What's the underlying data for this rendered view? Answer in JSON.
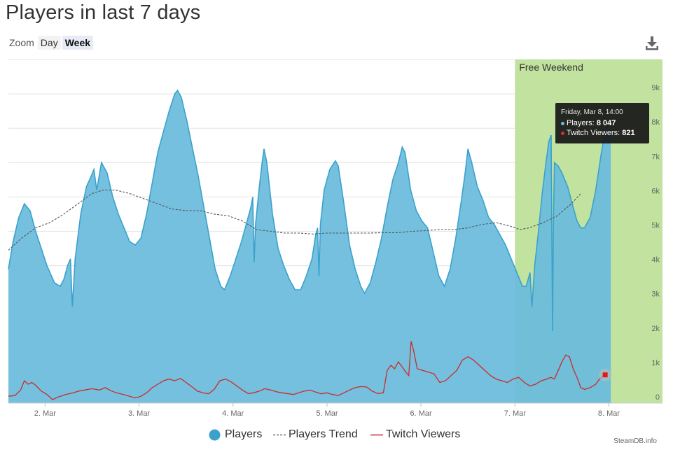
{
  "page": {
    "title": "Players in last 7 days",
    "credit": "SteamDB.info"
  },
  "zoom": {
    "label": "Zoom",
    "buttons": [
      "Day",
      "Week"
    ],
    "active": "Week"
  },
  "export": {
    "icon": "download-icon"
  },
  "tooltip": {
    "date": "Friday, Mar 8, 14:00",
    "players_label": "Players:",
    "players_value": "8 047",
    "twitch_label": "Twitch Viewers:",
    "twitch_value": "821"
  },
  "colors": {
    "players_fill": "#69bbdc",
    "players_line": "#3aa2cc",
    "trend": "#555555",
    "twitch": "#cc2b2b",
    "band": "#bfe19a",
    "grid": "#e3e3e3"
  },
  "chart_data": {
    "type": "area",
    "title": "Players in last 7 days",
    "x_ticks": [
      "2. Mar",
      "3. Mar",
      "4. Mar",
      "5. Mar",
      "6. Mar",
      "7. Mar",
      "8. Mar"
    ],
    "y_ticks": [
      "0",
      "1k",
      "2k",
      "3k",
      "4k",
      "5k",
      "6k",
      "7k",
      "8k",
      "9k"
    ],
    "ylim": [
      0,
      10000
    ],
    "xlim_days": [
      1.61,
      8.57
    ],
    "grid": true,
    "legend_position": "bottom-center",
    "band": {
      "label": "Free Weekend",
      "from_day": 7.0,
      "to_day": 8.57
    },
    "series": [
      {
        "name": "Players",
        "style": "area",
        "points": [
          [
            1.61,
            3900
          ],
          [
            1.66,
            4700
          ],
          [
            1.72,
            5400
          ],
          [
            1.78,
            5800
          ],
          [
            1.84,
            5600
          ],
          [
            1.9,
            5000
          ],
          [
            1.96,
            4500
          ],
          [
            2.02,
            4000
          ],
          [
            2.1,
            3500
          ],
          [
            2.16,
            3400
          ],
          [
            2.2,
            3600
          ],
          [
            2.24,
            4000
          ],
          [
            2.27,
            4200
          ],
          [
            2.29,
            2800
          ],
          [
            2.32,
            4200
          ],
          [
            2.38,
            5500
          ],
          [
            2.44,
            6300
          ],
          [
            2.49,
            6600
          ],
          [
            2.52,
            6800
          ],
          [
            2.55,
            6200
          ],
          [
            2.6,
            7000
          ],
          [
            2.66,
            6700
          ],
          [
            2.72,
            6000
          ],
          [
            2.78,
            5500
          ],
          [
            2.84,
            5100
          ],
          [
            2.9,
            4700
          ],
          [
            2.96,
            4600
          ],
          [
            3.02,
            4800
          ],
          [
            3.08,
            5500
          ],
          [
            3.14,
            6400
          ],
          [
            3.2,
            7300
          ],
          [
            3.26,
            7900
          ],
          [
            3.32,
            8500
          ],
          [
            3.38,
            9000
          ],
          [
            3.41,
            9100
          ],
          [
            3.45,
            8900
          ],
          [
            3.51,
            8200
          ],
          [
            3.57,
            7400
          ],
          [
            3.63,
            6600
          ],
          [
            3.69,
            5700
          ],
          [
            3.75,
            4800
          ],
          [
            3.81,
            3900
          ],
          [
            3.87,
            3400
          ],
          [
            3.91,
            3300
          ],
          [
            3.97,
            3700
          ],
          [
            4.03,
            4200
          ],
          [
            4.09,
            4700
          ],
          [
            4.15,
            5300
          ],
          [
            4.19,
            5700
          ],
          [
            4.21,
            6000
          ],
          [
            4.225,
            4100
          ],
          [
            4.24,
            5200
          ],
          [
            4.28,
            6300
          ],
          [
            4.31,
            7000
          ],
          [
            4.33,
            7400
          ],
          [
            4.36,
            7000
          ],
          [
            4.42,
            5500
          ],
          [
            4.48,
            4500
          ],
          [
            4.54,
            4000
          ],
          [
            4.6,
            3600
          ],
          [
            4.66,
            3300
          ],
          [
            4.72,
            3300
          ],
          [
            4.78,
            3700
          ],
          [
            4.84,
            4200
          ],
          [
            4.88,
            4900
          ],
          [
            4.9,
            5100
          ],
          [
            4.915,
            3700
          ],
          [
            4.93,
            5200
          ],
          [
            4.97,
            6200
          ],
          [
            5.03,
            6800
          ],
          [
            5.09,
            7050
          ],
          [
            5.12,
            6900
          ],
          [
            5.18,
            5800
          ],
          [
            5.24,
            4600
          ],
          [
            5.3,
            3900
          ],
          [
            5.36,
            3400
          ],
          [
            5.4,
            3200
          ],
          [
            5.46,
            3500
          ],
          [
            5.52,
            4100
          ],
          [
            5.58,
            4800
          ],
          [
            5.64,
            5700
          ],
          [
            5.7,
            6500
          ],
          [
            5.76,
            7000
          ],
          [
            5.8,
            7450
          ],
          [
            5.83,
            7300
          ],
          [
            5.89,
            6200
          ],
          [
            5.95,
            5600
          ],
          [
            6.01,
            5300
          ],
          [
            6.07,
            5100
          ],
          [
            6.13,
            4400
          ],
          [
            6.19,
            3700
          ],
          [
            6.25,
            3400
          ],
          [
            6.31,
            3900
          ],
          [
            6.37,
            4800
          ],
          [
            6.43,
            5900
          ],
          [
            6.47,
            6700
          ],
          [
            6.5,
            7400
          ],
          [
            6.54,
            7000
          ],
          [
            6.6,
            6300
          ],
          [
            6.66,
            5900
          ],
          [
            6.72,
            5400
          ],
          [
            6.78,
            5200
          ],
          [
            6.84,
            4900
          ],
          [
            6.9,
            4600
          ],
          [
            6.96,
            4200
          ],
          [
            7.02,
            3800
          ],
          [
            7.08,
            3400
          ],
          [
            7.12,
            3400
          ],
          [
            7.16,
            3800
          ],
          [
            7.18,
            2800
          ],
          [
            7.21,
            4000
          ],
          [
            7.25,
            5000
          ],
          [
            7.29,
            6100
          ],
          [
            7.33,
            7000
          ],
          [
            7.36,
            7600
          ],
          [
            7.385,
            7800
          ],
          [
            7.4,
            2100
          ],
          [
            7.41,
            5400
          ],
          [
            7.42,
            7000
          ],
          [
            7.46,
            6900
          ],
          [
            7.5,
            6700
          ],
          [
            7.56,
            6300
          ],
          [
            7.62,
            5700
          ],
          [
            7.66,
            5300
          ],
          [
            7.7,
            5100
          ],
          [
            7.74,
            5100
          ],
          [
            7.8,
            5400
          ],
          [
            7.86,
            6200
          ],
          [
            7.92,
            7300
          ],
          [
            7.96,
            7900
          ],
          [
            7.98,
            8047
          ],
          [
            8.02,
            8100
          ]
        ],
        "x_anchor": "day",
        "note_unit": "players"
      },
      {
        "name": "Players Trend",
        "style": "dashed",
        "points": [
          [
            1.61,
            4450
          ],
          [
            1.75,
            4800
          ],
          [
            1.9,
            5100
          ],
          [
            2.05,
            5250
          ],
          [
            2.2,
            5500
          ],
          [
            2.35,
            5800
          ],
          [
            2.5,
            6100
          ],
          [
            2.62,
            6200
          ],
          [
            2.75,
            6200
          ],
          [
            2.9,
            6100
          ],
          [
            3.05,
            5950
          ],
          [
            3.2,
            5800
          ],
          [
            3.35,
            5650
          ],
          [
            3.5,
            5600
          ],
          [
            3.65,
            5600
          ],
          [
            3.8,
            5500
          ],
          [
            3.95,
            5450
          ],
          [
            4.1,
            5300
          ],
          [
            4.25,
            5050
          ],
          [
            4.4,
            5000
          ],
          [
            4.55,
            4950
          ],
          [
            4.7,
            4950
          ],
          [
            4.85,
            4920
          ],
          [
            5.0,
            4950
          ],
          [
            5.15,
            4950
          ],
          [
            5.3,
            4950
          ],
          [
            5.45,
            4950
          ],
          [
            5.6,
            4960
          ],
          [
            5.75,
            4960
          ],
          [
            5.9,
            5000
          ],
          [
            6.05,
            5020
          ],
          [
            6.2,
            5050
          ],
          [
            6.35,
            5050
          ],
          [
            6.5,
            5100
          ],
          [
            6.65,
            5200
          ],
          [
            6.8,
            5250
          ],
          [
            6.95,
            5150
          ],
          [
            7.05,
            5050
          ],
          [
            7.15,
            5100
          ],
          [
            7.3,
            5250
          ],
          [
            7.45,
            5450
          ],
          [
            7.6,
            5800
          ],
          [
            7.7,
            6100
          ]
        ]
      },
      {
        "name": "Twitch Viewers",
        "style": "line",
        "points": [
          [
            1.61,
            200
          ],
          [
            1.68,
            220
          ],
          [
            1.74,
            380
          ],
          [
            1.78,
            650
          ],
          [
            1.82,
            550
          ],
          [
            1.86,
            600
          ],
          [
            1.9,
            520
          ],
          [
            1.96,
            350
          ],
          [
            2.02,
            250
          ],
          [
            2.08,
            100
          ],
          [
            2.14,
            180
          ],
          [
            2.22,
            250
          ],
          [
            2.3,
            300
          ],
          [
            2.36,
            350
          ],
          [
            2.42,
            380
          ],
          [
            2.5,
            420
          ],
          [
            2.58,
            380
          ],
          [
            2.64,
            450
          ],
          [
            2.7,
            360
          ],
          [
            2.76,
            300
          ],
          [
            2.82,
            260
          ],
          [
            2.9,
            200
          ],
          [
            2.96,
            150
          ],
          [
            3.02,
            200
          ],
          [
            3.08,
            300
          ],
          [
            3.14,
            450
          ],
          [
            3.2,
            550
          ],
          [
            3.26,
            650
          ],
          [
            3.32,
            700
          ],
          [
            3.38,
            650
          ],
          [
            3.44,
            720
          ],
          [
            3.5,
            600
          ],
          [
            3.56,
            480
          ],
          [
            3.62,
            350
          ],
          [
            3.68,
            300
          ],
          [
            3.74,
            270
          ],
          [
            3.8,
            400
          ],
          [
            3.86,
            650
          ],
          [
            3.92,
            700
          ],
          [
            3.98,
            620
          ],
          [
            4.04,
            500
          ],
          [
            4.1,
            380
          ],
          [
            4.16,
            280
          ],
          [
            4.22,
            300
          ],
          [
            4.28,
            350
          ],
          [
            4.34,
            420
          ],
          [
            4.4,
            380
          ],
          [
            4.46,
            330
          ],
          [
            4.52,
            300
          ],
          [
            4.58,
            280
          ],
          [
            4.64,
            250
          ],
          [
            4.7,
            300
          ],
          [
            4.76,
            350
          ],
          [
            4.82,
            380
          ],
          [
            4.88,
            320
          ],
          [
            4.94,
            270
          ],
          [
            5.0,
            300
          ],
          [
            5.06,
            250
          ],
          [
            5.12,
            220
          ],
          [
            5.18,
            300
          ],
          [
            5.24,
            380
          ],
          [
            5.3,
            450
          ],
          [
            5.36,
            480
          ],
          [
            5.42,
            470
          ],
          [
            5.48,
            350
          ],
          [
            5.54,
            280
          ],
          [
            5.6,
            300
          ],
          [
            5.64,
            950
          ],
          [
            5.68,
            1100
          ],
          [
            5.72,
            1000
          ],
          [
            5.76,
            1200
          ],
          [
            5.8,
            1050
          ],
          [
            5.84,
            900
          ],
          [
            5.87,
            800
          ],
          [
            5.895,
            1800
          ],
          [
            5.92,
            1550
          ],
          [
            5.96,
            1000
          ],
          [
            6.02,
            950
          ],
          [
            6.08,
            900
          ],
          [
            6.14,
            850
          ],
          [
            6.2,
            600
          ],
          [
            6.26,
            650
          ],
          [
            6.32,
            800
          ],
          [
            6.38,
            950
          ],
          [
            6.44,
            1250
          ],
          [
            6.5,
            1350
          ],
          [
            6.56,
            1250
          ],
          [
            6.62,
            1100
          ],
          [
            6.68,
            950
          ],
          [
            6.74,
            800
          ],
          [
            6.8,
            700
          ],
          [
            6.86,
            650
          ],
          [
            6.92,
            600
          ],
          [
            6.98,
            700
          ],
          [
            7.04,
            750
          ],
          [
            7.1,
            600
          ],
          [
            7.16,
            500
          ],
          [
            7.22,
            550
          ],
          [
            7.28,
            650
          ],
          [
            7.34,
            700
          ],
          [
            7.38,
            750
          ],
          [
            7.42,
            700
          ],
          [
            7.46,
            950
          ],
          [
            7.5,
            1200
          ],
          [
            7.54,
            1400
          ],
          [
            7.58,
            1350
          ],
          [
            7.62,
            1000
          ],
          [
            7.66,
            750
          ],
          [
            7.7,
            450
          ],
          [
            7.74,
            400
          ],
          [
            7.8,
            450
          ],
          [
            7.86,
            550
          ],
          [
            7.9,
            700
          ],
          [
            7.94,
            800
          ],
          [
            7.96,
            821
          ]
        ]
      }
    ]
  },
  "legend": [
    {
      "name": "Players",
      "marker": "circle"
    },
    {
      "name": "Players Trend",
      "marker": "dashed-line"
    },
    {
      "name": "Twitch Viewers",
      "marker": "line"
    }
  ]
}
